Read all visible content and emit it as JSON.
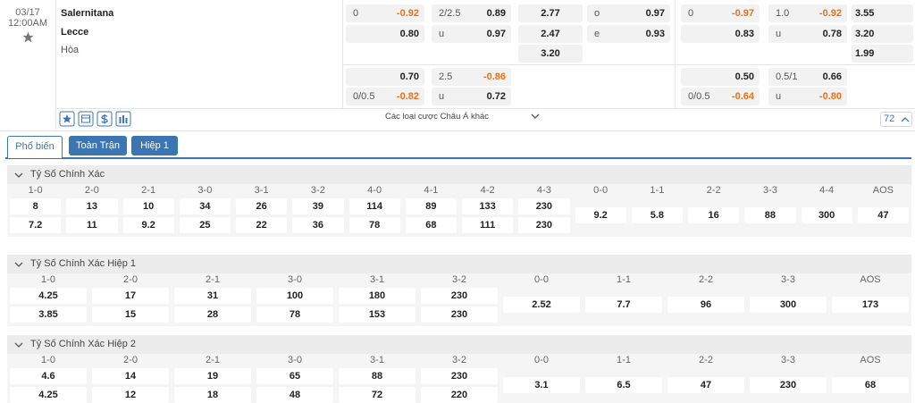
{
  "match": {
    "date": "03/17",
    "time": "12:00AM",
    "home": "Salernitana",
    "away": "Lecce",
    "draw": "Hòa"
  },
  "odds": {
    "rows": [
      [
        {
          "label": "0",
          "value": "-0.92"
        },
        {
          "label": "2/2.5",
          "value": "0.89"
        },
        {
          "value": "2.77"
        },
        {
          "label": "o",
          "value": "0.97"
        },
        {
          "label": "0",
          "value": "-0.97"
        },
        {
          "label": "1.0",
          "value": "-0.92"
        },
        {
          "value": "3.55"
        }
      ],
      [
        {
          "value": "0.80"
        },
        {
          "label": "u",
          "value": "0.97"
        },
        {
          "value": "2.47"
        },
        {
          "label": "e",
          "value": "0.93"
        },
        {
          "value": "0.83"
        },
        {
          "label": "u",
          "value": "0.78"
        },
        {
          "value": "3.20"
        }
      ],
      [
        null,
        null,
        {
          "value": "3.20"
        },
        null,
        null,
        null,
        {
          "value": "1.99"
        }
      ],
      [
        {
          "value": "0.70"
        },
        {
          "label": "2.5",
          "value": "-0.86"
        },
        null,
        null,
        {
          "value": "0.50"
        },
        {
          "label": "0.5/1",
          "value": "0.66"
        },
        null
      ],
      [
        {
          "label": "0/0.5",
          "value": "-0.82"
        },
        {
          "label": "u",
          "value": "0.72"
        },
        null,
        null,
        {
          "label": "0/0.5",
          "value": "-0.64"
        },
        {
          "label": "u",
          "value": "-0.80"
        },
        null
      ]
    ]
  },
  "more_bets": "Các loại cược Châu Á khác",
  "market_count": "72",
  "tabs": [
    "Phổ biến",
    "Toàn Trận",
    "Hiệp 1"
  ],
  "sections": [
    {
      "title": "Tỷ Số Chính Xác",
      "scores": [
        "1-0",
        "2-0",
        "2-1",
        "3-0",
        "3-1",
        "3-2",
        "4-0",
        "4-1",
        "4-2",
        "4-3"
      ],
      "home": [
        "8",
        "13",
        "10",
        "34",
        "26",
        "39",
        "114",
        "89",
        "133",
        "230"
      ],
      "away": [
        "7.2",
        "11",
        "9.2",
        "25",
        "22",
        "36",
        "78",
        "68",
        "111",
        "230"
      ],
      "draw_scores": [
        "0-0",
        "1-1",
        "2-2",
        "3-3",
        "4-4",
        "AOS"
      ],
      "draws": [
        "9.2",
        "5.8",
        "16",
        "88",
        "300",
        "47"
      ]
    },
    {
      "title": "Tỷ Số Chính Xác Hiệp 1",
      "scores": [
        "1-0",
        "2-0",
        "2-1",
        "3-0",
        "3-1",
        "3-2"
      ],
      "home": [
        "4.25",
        "17",
        "31",
        "100",
        "180",
        "230"
      ],
      "away": [
        "3.85",
        "15",
        "28",
        "78",
        "153",
        "230"
      ],
      "draw_scores": [
        "0-0",
        "1-1",
        "2-2",
        "3-3",
        "AOS"
      ],
      "draws": [
        "2.52",
        "7.7",
        "96",
        "300",
        "173"
      ]
    },
    {
      "title": "Tỷ Số Chính Xác Hiệp 2",
      "scores": [
        "1-0",
        "2-0",
        "2-1",
        "3-0",
        "3-1",
        "3-2"
      ],
      "home": [
        "4.6",
        "14",
        "19",
        "65",
        "88",
        "230"
      ],
      "away": [
        "4.25",
        "12",
        "18",
        "48",
        "72",
        "220"
      ],
      "draw_scores": [
        "0-0",
        "1-1",
        "2-2",
        "3-3",
        "AOS"
      ],
      "draws": [
        "3.1",
        "6.5",
        "47",
        "230",
        "68"
      ]
    }
  ]
}
